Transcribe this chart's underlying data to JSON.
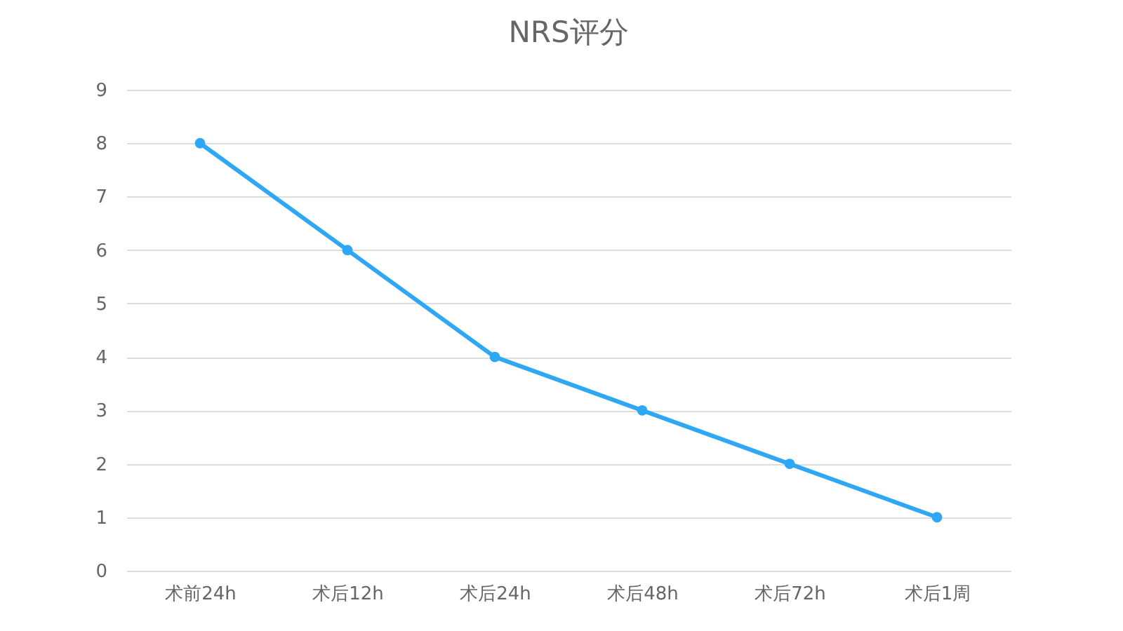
{
  "chart_data": {
    "type": "line",
    "title": "NRS评分",
    "categories": [
      "术前24h",
      "术后12h",
      "术后24h",
      "术后48h",
      "术后72h",
      "术后1周"
    ],
    "series": [
      {
        "color": "#2ea7f5",
        "values": [
          8,
          6,
          4,
          3,
          2,
          1
        ]
      }
    ],
    "ylim": [
      0,
      9
    ],
    "yticks": [
      0,
      1,
      2,
      3,
      4,
      5,
      6,
      7,
      8,
      9
    ],
    "grid": "y",
    "marker": "circle",
    "line_style": "solid"
  }
}
